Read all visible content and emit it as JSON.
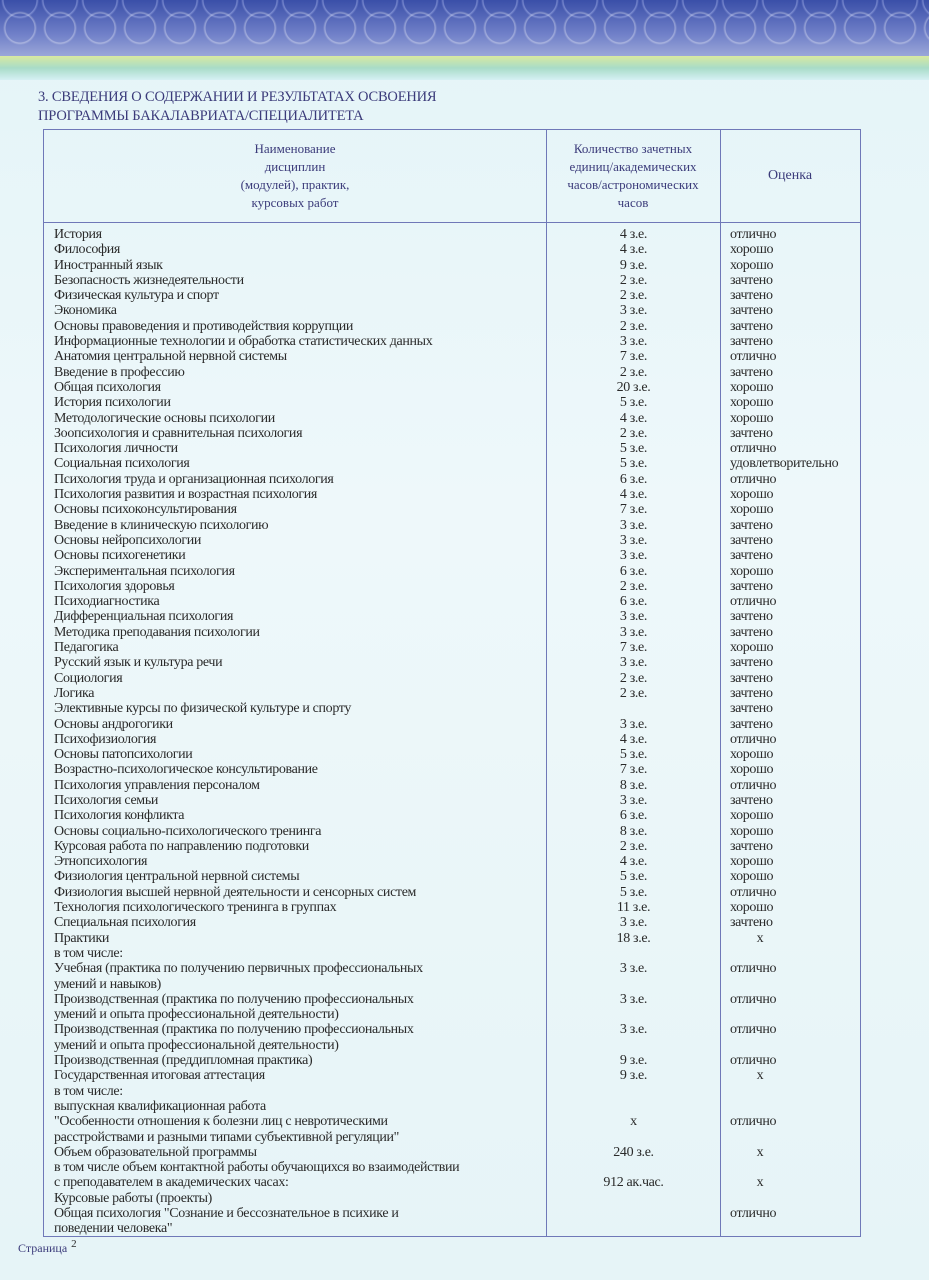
{
  "section_title": [
    "3. СВЕДЕНИЯ О СОДЕРЖАНИИ И РЕЗУЛЬТАТАХ ОСВОЕНИЯ",
    "ПРОГРАММЫ БАКАЛАВРИАТА/СПЕЦИАЛИТЕТА"
  ],
  "headers": {
    "name": "Наименование\nдисциплин\n(модулей), практик,\nкурсовых работ",
    "credits": "Количество зачетных\nединиц/академических\nчасов/астрономических\nчасов",
    "grade": "Оценка"
  },
  "lines": [
    [
      "История",
      "4 з.е.",
      "отлично"
    ],
    [
      "Философия",
      "4 з.е.",
      "хорошо"
    ],
    [
      "Иностранный язык",
      "9 з.е.",
      "хорошо"
    ],
    [
      "Безопасность жизнедеятельности",
      "2 з.е.",
      "зачтено"
    ],
    [
      "Физическая культура и спорт",
      "2 з.е.",
      "зачтено"
    ],
    [
      "Экономика",
      "3 з.е.",
      "зачтено"
    ],
    [
      "Основы правоведения и противодействия коррупции",
      "2 з.е.",
      "зачтено"
    ],
    [
      "Информационные технологии и обработка статистических данных",
      "3 з.е.",
      "зачтено"
    ],
    [
      "Анатомия центральной нервной системы",
      "7 з.е.",
      "отлично"
    ],
    [
      "Введение в профессию",
      "2 з.е.",
      "зачтено"
    ],
    [
      "Общая психология",
      "20 з.е.",
      "хорошо"
    ],
    [
      "История психологии",
      "5 з.е.",
      "хорошо"
    ],
    [
      "Методологические основы психологии",
      "4 з.е.",
      "хорошо"
    ],
    [
      "Зоопсихология и сравнительная психология",
      "2 з.е.",
      "зачтено"
    ],
    [
      "Психология личности",
      "5 з.е.",
      "отлично"
    ],
    [
      "Социальная психология",
      "5 з.е.",
      "удовлетворительно"
    ],
    [
      "Психология труда и организационная психология",
      "6 з.е.",
      "отлично"
    ],
    [
      "Психология развития и возрастная психология",
      "4 з.е.",
      "хорошо"
    ],
    [
      "Основы психоконсультирования",
      "7 з.е.",
      "хорошо"
    ],
    [
      "Введение в клиническую психологию",
      "3 з.е.",
      "зачтено"
    ],
    [
      "Основы нейропсихологии",
      "3 з.е.",
      "зачтено"
    ],
    [
      "Основы психогенетики",
      "3 з.е.",
      "зачтено"
    ],
    [
      "Экспериментальная психология",
      "6 з.е.",
      "хорошо"
    ],
    [
      "Психология здоровья",
      "2 з.е.",
      "зачтено"
    ],
    [
      "Психодиагностика",
      "6 з.е.",
      "отлично"
    ],
    [
      "Дифференциальная психология",
      "3 з.е.",
      "зачтено"
    ],
    [
      "Методика преподавания психологии",
      "3 з.е.",
      "зачтено"
    ],
    [
      "Педагогика",
      "7 з.е.",
      "хорошо"
    ],
    [
      "Русский язык и культура речи",
      "3 з.е.",
      "зачтено"
    ],
    [
      "Социология",
      "2 з.е.",
      "зачтено"
    ],
    [
      "Логика",
      "2 з.е.",
      "зачтено"
    ],
    [
      "Элективные курсы по физической культуре и спорту",
      "",
      "зачтено"
    ],
    [
      "Основы андрогогики",
      "3 з.е.",
      "зачтено"
    ],
    [
      "Психофизиология",
      "4 з.е.",
      "отлично"
    ],
    [
      "Основы патопсихологии",
      "5 з.е.",
      "хорошо"
    ],
    [
      "Возрастно-психологическое консультирование",
      "7 з.е.",
      "хорошо"
    ],
    [
      "Психология управления персоналом",
      "8 з.е.",
      "отлично"
    ],
    [
      "Психология семьи",
      "3 з.е.",
      "зачтено"
    ],
    [
      "Психология конфликта",
      "6 з.е.",
      "хорошо"
    ],
    [
      "Основы социально-психологического тренинга",
      "8 з.е.",
      "хорошо"
    ],
    [
      "Курсовая работа по направлению подготовки",
      "2 з.е.",
      "зачтено"
    ],
    [
      "Этнопсихология",
      "4 з.е.",
      "хорошо"
    ],
    [
      "Физиология центральной нервной системы",
      "5 з.е.",
      "хорошо"
    ],
    [
      "Физиология высшей нервной деятельности и сенсорных систем",
      "5 з.е.",
      "отлично"
    ],
    [
      "Технология психологического тренинга в группах",
      "11 з.е.",
      "хорошо"
    ],
    [
      "Специальная психология",
      "3 з.е.",
      "зачтено"
    ],
    [
      "Практики",
      "18 з.е.",
      "х"
    ],
    [
      "в том числе:",
      "",
      ""
    ],
    [
      "Учебная (практика по получению первичных профессиональных",
      "3 з.е.",
      "отлично"
    ],
    [
      "умений и навыков)",
      "",
      ""
    ],
    [
      "Производственная (практика по получению профессиональных",
      "3 з.е.",
      "отлично"
    ],
    [
      "умений и опыта профессиональной деятельности)",
      "",
      ""
    ],
    [
      "Производственная (практика по получению профессиональных",
      "3 з.е.",
      "отлично"
    ],
    [
      "умений и опыта профессиональной деятельности)",
      "",
      ""
    ],
    [
      "Производственная (преддипломная практика)",
      "9 з.е.",
      "отлично"
    ],
    [
      "Государственная итоговая аттестация",
      "9 з.е.",
      "х"
    ],
    [
      "в том числе:",
      "",
      ""
    ],
    [
      "выпускная квалификационная работа",
      "",
      ""
    ],
    [
      "\"Особенности отношения к болезни лиц с невротическими",
      "х",
      "отлично"
    ],
    [
      "расстройствами и разными типами субъективной регуляции\"",
      "",
      ""
    ],
    [
      "Объем образовательной программы",
      "240 з.е.",
      "х"
    ],
    [
      "в том числе объем контактной работы обучающихся во взаимодействии",
      "",
      ""
    ],
    [
      "с преподавателем в академических часах:",
      "912 ак.час.",
      "х"
    ],
    [
      "Курсовые работы (проекты)",
      "",
      ""
    ],
    [
      "Общая психология \"Сознание и бессознательное в психике и",
      "",
      "отлично"
    ],
    [
      "поведении человека\"",
      "",
      ""
    ]
  ],
  "footer": {
    "label": "Страница",
    "page": "2"
  },
  "colors": {
    "heading": "#3b3b7a",
    "border": "#6f78b8",
    "background": "#e4f4f8",
    "band": "#3a4fa8"
  }
}
